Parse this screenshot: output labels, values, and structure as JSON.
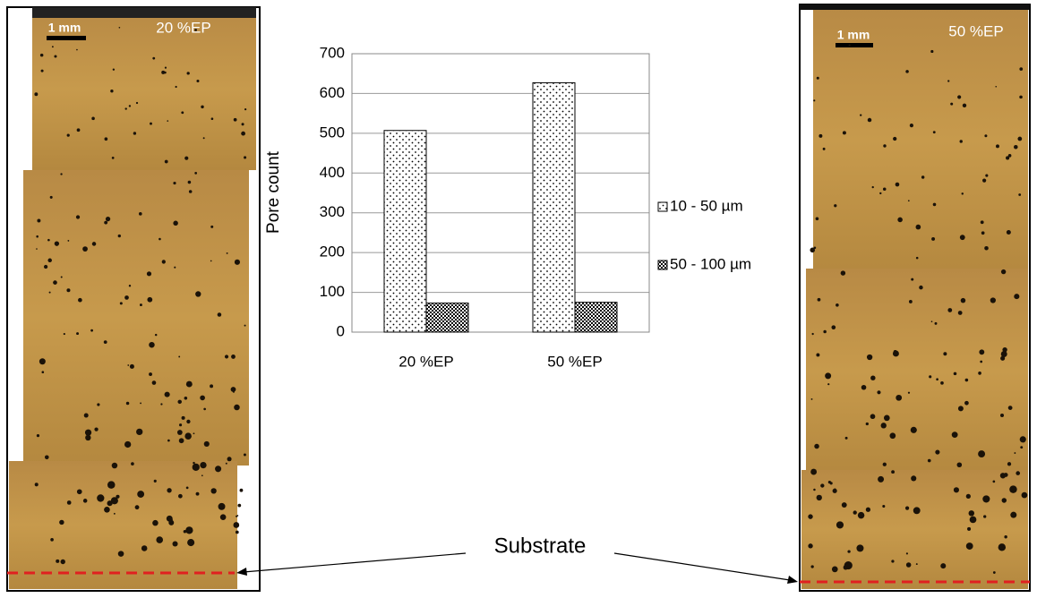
{
  "micrographs": [
    {
      "scale": "1 mm",
      "label": "20 %EP"
    },
    {
      "scale": "1 mm",
      "label": "50 %EP"
    }
  ],
  "annotation": "Substrate",
  "chart_data": {
    "type": "bar",
    "ylabel": "Pore count",
    "categories": [
      "20 %EP",
      "50 %EP"
    ],
    "series": [
      {
        "name": "10 - 50 µm",
        "values": [
          507,
          627
        ]
      },
      {
        "name": "50 - 100 µm",
        "values": [
          73,
          75
        ]
      }
    ],
    "ylim": [
      0,
      700
    ],
    "yticks": [
      0,
      100,
      200,
      300,
      400,
      500,
      600,
      700
    ],
    "grid": true,
    "legend": "right"
  }
}
